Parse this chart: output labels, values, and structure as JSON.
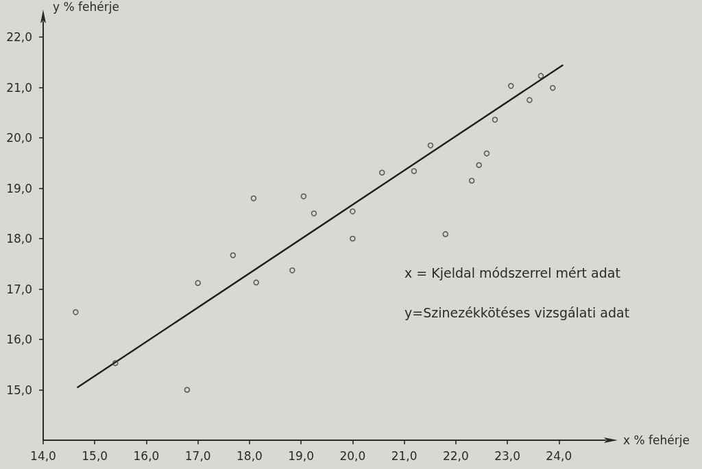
{
  "chart_data": {
    "type": "scatter",
    "xlabel": "x % fehérje",
    "ylabel": "y % fehérje",
    "annotations": [
      "x = Kjeldal módszerrel mért adat",
      "y=Szinezékkötéses vizsgálati adat"
    ],
    "xlim": [
      14,
      24.9
    ],
    "ylim": [
      14,
      22.3
    ],
    "xticks": [
      {
        "value": 14,
        "label": "14,0"
      },
      {
        "value": 15,
        "label": "15,0"
      },
      {
        "value": 16,
        "label": "16,0"
      },
      {
        "value": 17,
        "label": "17,0"
      },
      {
        "value": 18,
        "label": "18,0"
      },
      {
        "value": 19,
        "label": "19,0"
      },
      {
        "value": 20,
        "label": "20,0"
      },
      {
        "value": 21,
        "label": "21,0"
      },
      {
        "value": 22,
        "label": "22,0"
      },
      {
        "value": 23,
        "label": "23,0"
      },
      {
        "value": 24,
        "label": "24,0"
      }
    ],
    "yticks": [
      {
        "value": 15,
        "label": "15,0"
      },
      {
        "value": 16,
        "label": "16,0"
      },
      {
        "value": 17,
        "label": "17,0"
      },
      {
        "value": 18,
        "label": "18,0"
      },
      {
        "value": 19,
        "label": "19,0"
      },
      {
        "value": 20,
        "label": "20,0"
      },
      {
        "value": 21,
        "label": "21,0"
      },
      {
        "value": 22,
        "label": "22,0"
      }
    ],
    "marker": "circle",
    "series": [
      {
        "color": "#3c3c3c",
        "x": [
          14.63,
          15.4,
          16.79,
          17.0,
          17.68,
          18.08,
          18.13,
          18.83,
          19.05,
          19.25,
          20.0,
          20.0,
          20.57,
          21.19,
          21.51,
          21.8,
          22.31,
          22.45,
          22.6,
          22.76,
          23.07,
          23.43,
          23.65,
          23.88
        ],
        "values": [
          16.54,
          15.53,
          15.0,
          17.12,
          17.67,
          18.8,
          17.13,
          17.37,
          18.84,
          18.5,
          18.54,
          18.0,
          19.31,
          19.34,
          19.85,
          18.09,
          19.15,
          19.46,
          19.69,
          20.36,
          21.03,
          20.75,
          21.23,
          20.99
        ]
      },
      {
        "type": "line",
        "color": "#1e1e1e",
        "marker": "none",
        "line_style": "solid",
        "x": [
          14.67,
          24.07
        ],
        "values": [
          15.05,
          21.44
        ]
      }
    ]
  }
}
